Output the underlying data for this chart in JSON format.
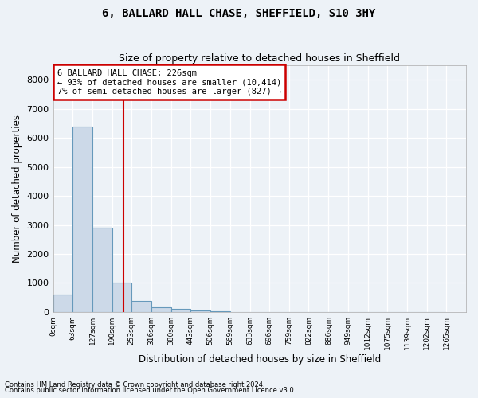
{
  "title": "6, BALLARD HALL CHASE, SHEFFIELD, S10 3HY",
  "subtitle": "Size of property relative to detached houses in Sheffield",
  "xlabel": "Distribution of detached houses by size in Sheffield",
  "ylabel": "Number of detached properties",
  "footnote1": "Contains HM Land Registry data © Crown copyright and database right 2024.",
  "footnote2": "Contains public sector information licensed under the Open Government Licence v3.0.",
  "bar_color": "#ccd9e8",
  "bar_edge_color": "#6699bb",
  "annotation_text": "6 BALLARD HALL CHASE: 226sqm\n← 93% of detached houses are smaller (10,414)\n7% of semi-detached houses are larger (827) →",
  "annotation_box_color": "#cc0000",
  "vline_color": "#cc0000",
  "bg_color": "#edf2f7",
  "grid_color": "#ffffff",
  "ylim": [
    0,
    8500
  ],
  "yticks": [
    0,
    1000,
    2000,
    3000,
    4000,
    5000,
    6000,
    7000,
    8000
  ],
  "bin_edges": [
    0,
    63,
    127,
    190,
    253,
    316,
    380,
    443,
    506,
    569,
    633,
    696,
    759,
    822,
    886,
    949,
    1012,
    1075,
    1139,
    1202,
    1265
  ],
  "bin_labels": [
    "0sqm",
    "63sqm",
    "127sqm",
    "190sqm",
    "253sqm",
    "316sqm",
    "380sqm",
    "443sqm",
    "506sqm",
    "569sqm",
    "633sqm",
    "696sqm",
    "759sqm",
    "822sqm",
    "886sqm",
    "949sqm",
    "1012sqm",
    "1075sqm",
    "1139sqm",
    "1202sqm",
    "1265sqm"
  ],
  "bar_heights": [
    600,
    6400,
    2900,
    1000,
    370,
    160,
    95,
    65,
    30,
    0,
    0,
    0,
    0,
    0,
    0,
    0,
    0,
    0,
    0,
    0
  ]
}
